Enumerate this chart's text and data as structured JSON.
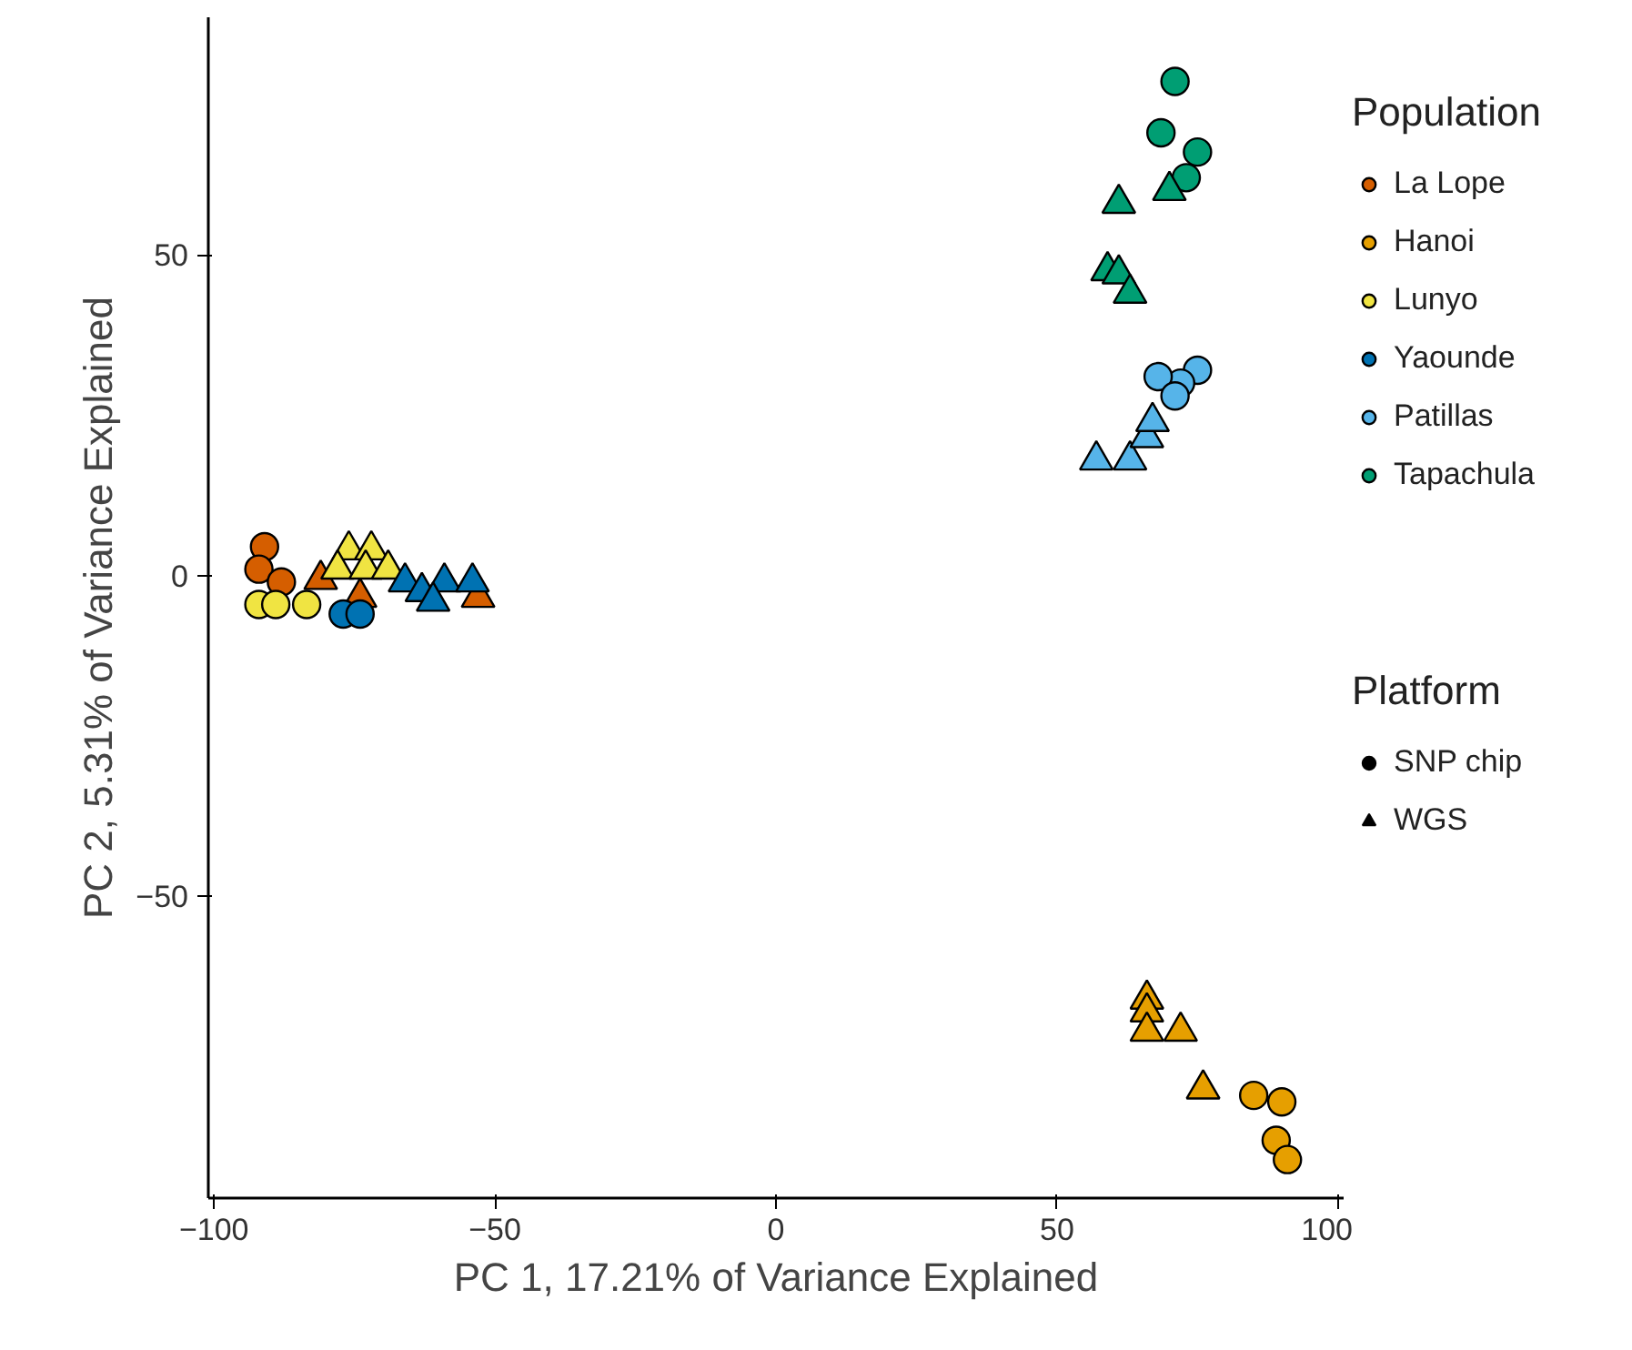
{
  "chart_data": {
    "type": "scatter",
    "xlabel": "PC 1, 17.21% of Variance Explained",
    "ylabel": "PC 2, 5.31% of Variance Explained",
    "xlim": [
      -101,
      101
    ],
    "ylim": [
      -97,
      87
    ],
    "xticks": [
      {
        "value": -100,
        "label": "−100"
      },
      {
        "value": -50,
        "label": "−50"
      },
      0,
      50,
      100
    ],
    "yticks": [
      {
        "value": -50,
        "label": "−50"
      },
      0,
      50
    ],
    "grid": false,
    "legend": "right",
    "legend_title": "Population",
    "annotations": [
      "Platform"
    ],
    "series": [
      {
        "name": "La Lope",
        "color": "#d55e00",
        "marker": "circle",
        "x": [
          -91,
          -92,
          -88
        ],
        "values": [
          4.5,
          1,
          -1
        ]
      },
      {
        "color": "#d55e00",
        "marker": "triangle",
        "x": [
          -81,
          -74,
          -53
        ],
        "values": [
          -0.6,
          -3.4,
          -3.4
        ]
      },
      {
        "name": "Hanoi",
        "color": "#e69f00",
        "marker": "circle",
        "x": [
          85,
          90,
          89,
          91
        ],
        "values": [
          -81,
          -82,
          -88,
          -91
        ]
      },
      {
        "color": "#e69f00",
        "marker": "triangle",
        "x": [
          66,
          66,
          66,
          72,
          76
        ],
        "values": [
          -66,
          -68,
          -71,
          -71,
          -80
        ]
      },
      {
        "name": "Lunyo",
        "color": "#f0e442",
        "marker": "circle",
        "x": [
          -92,
          -89,
          -83.5
        ],
        "values": [
          -4.5,
          -4.5,
          -4.5
        ]
      },
      {
        "color": "#f0e442",
        "marker": "triangle",
        "x": [
          -76,
          -72,
          -78,
          -73,
          -69
        ],
        "values": [
          4,
          4,
          1,
          1,
          1
        ]
      },
      {
        "name": "Yaounde",
        "color": "#0072b2",
        "marker": "circle",
        "x": [
          -77,
          -74
        ],
        "values": [
          -6,
          -6
        ]
      },
      {
        "color": "#0072b2",
        "marker": "triangle",
        "x": [
          -66,
          -63,
          -59,
          -54,
          -61
        ],
        "values": [
          -1,
          -2.5,
          -1,
          -1,
          -4
        ]
      },
      {
        "name": "Patillas",
        "color": "#56b4e9",
        "marker": "circle",
        "x": [
          75,
          72,
          68,
          71
        ],
        "values": [
          32,
          30,
          31,
          28
        ]
      },
      {
        "color": "#56b4e9",
        "marker": "triangle",
        "x": [
          57,
          63,
          66,
          67
        ],
        "values": [
          18,
          18,
          21.5,
          24
        ]
      },
      {
        "name": "Tapachula",
        "color": "#009e73",
        "marker": "circle",
        "x": [
          71,
          68.5,
          75,
          73
        ],
        "values": [
          77,
          69,
          66,
          62
        ]
      },
      {
        "color": "#009e73",
        "marker": "triangle",
        "x": [
          61,
          70,
          59,
          61,
          63
        ],
        "values": [
          58,
          60,
          47.5,
          47,
          44
        ]
      },
      {
        "name": "SNP chip",
        "color": "#000000",
        "marker": "circle"
      },
      {
        "name": "WGS",
        "color": "#000000",
        "marker": "triangle"
      }
    ]
  }
}
